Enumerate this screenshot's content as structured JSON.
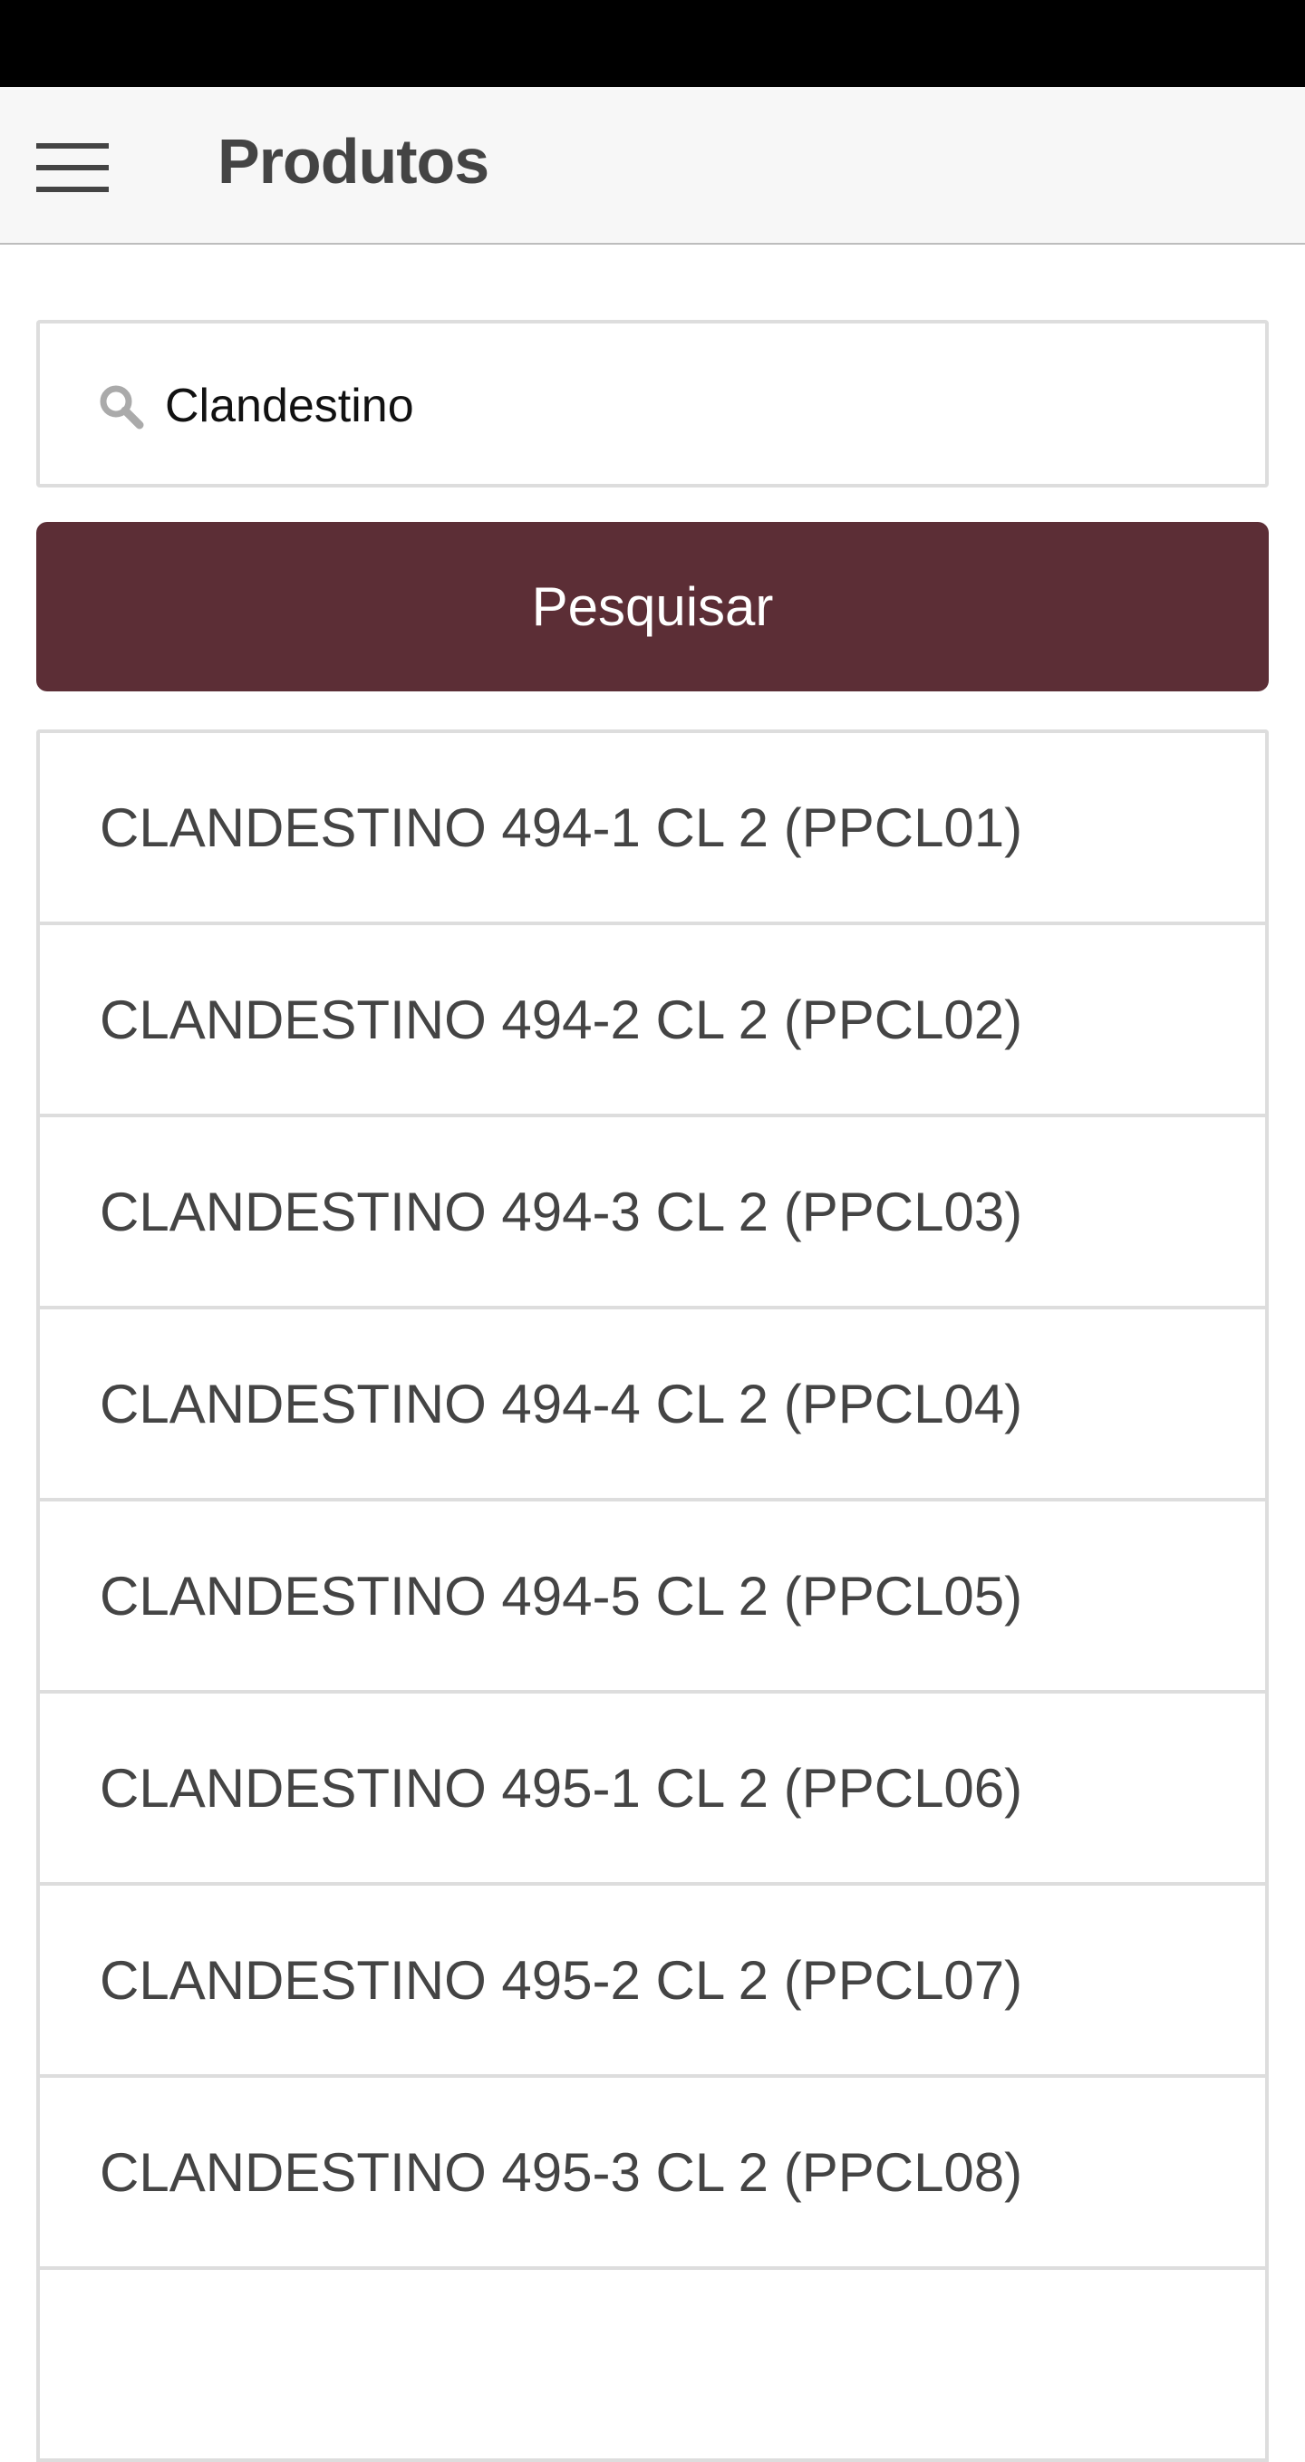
{
  "header": {
    "title": "Produtos",
    "menu_icon": "hamburger-menu-icon"
  },
  "search": {
    "value": "Clandestino",
    "icon": "search-icon",
    "button_label": "Pesquisar"
  },
  "colors": {
    "accent": "#5c2e36",
    "header_bg": "#f7f7f7"
  },
  "results": [
    "CLANDESTINO 494-1 CL 2 (PPCL01)",
    "CLANDESTINO 494-2 CL 2 (PPCL02)",
    "CLANDESTINO 494-3 CL 2 (PPCL03)",
    "CLANDESTINO 494-4 CL 2 (PPCL04)",
    "CLANDESTINO 494-5 CL 2 (PPCL05)",
    "CLANDESTINO 495-1 CL 2 (PPCL06)",
    "CLANDESTINO 495-2 CL 2 (PPCL07)",
    "CLANDESTINO 495-3 CL 2 (PPCL08)",
    ""
  ]
}
